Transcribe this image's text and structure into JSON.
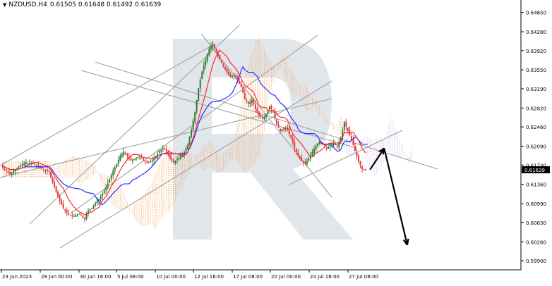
{
  "header": {
    "symbol": "NZDUSD,H4",
    "ohlc": "0.61505 0.61648 0.61492 0.61639"
  },
  "chart_data": {
    "type": "candlestick",
    "symbol": "NZDUSD",
    "timeframe": "H4",
    "ylim": [
      0.599,
      0.6478
    ],
    "y_ticks": [
      "0.64650",
      "0.64280",
      "0.63920",
      "0.63550",
      "0.63190",
      "0.62820",
      "0.62460",
      "0.62090",
      "0.61730",
      "0.61360",
      "0.60990",
      "0.60630",
      "0.60260",
      "0.59900"
    ],
    "x_ticks": [
      "23 Jun 2023",
      "28 Jun 00:00",
      "30 Jun 16:00",
      "5 Jul 08:00",
      "10 Jul 00:00",
      "12 Jul 16:00",
      "17 Jul 08:00",
      "20 Jul 00:00",
      "24 Jul 16:00",
      "27 Jul 08:00"
    ],
    "current_price": "0.61639",
    "grid": false,
    "colors": {
      "bull_candle": "#2e7d32",
      "bear_candle": "#e53935",
      "tenkan": "#ff1a1a",
      "kijun": "#1a1aff",
      "cloud": "#f4a460",
      "cloud_bearish": "#d6b8f0",
      "trendlines": "#a0a0a0",
      "forecast_arrow": "#000000",
      "price_label_bg": "#000000",
      "watermark": "#a9b7c7"
    },
    "close_path": [
      [
        0,
        0.6168
      ],
      [
        4,
        0.6155
      ],
      [
        6,
        0.6162
      ],
      [
        9,
        0.617
      ],
      [
        13,
        0.6178
      ],
      [
        17,
        0.6175
      ],
      [
        20,
        0.617
      ],
      [
        23,
        0.6164
      ],
      [
        26,
        0.616
      ],
      [
        28,
        0.614
      ],
      [
        31,
        0.6112
      ],
      [
        34,
        0.609
      ],
      [
        37,
        0.6078
      ],
      [
        40,
        0.6075
      ],
      [
        43,
        0.608
      ],
      [
        46,
        0.607
      ],
      [
        48,
        0.6085
      ],
      [
        50,
        0.609
      ],
      [
        52,
        0.61
      ],
      [
        54,
        0.6108
      ],
      [
        56,
        0.6118
      ],
      [
        58,
        0.613
      ],
      [
        60,
        0.6145
      ],
      [
        62,
        0.6162
      ],
      [
        64,
        0.6175
      ],
      [
        66,
        0.619
      ],
      [
        68,
        0.6198
      ],
      [
        70,
        0.619
      ],
      [
        72,
        0.6182
      ],
      [
        74,
        0.6184
      ],
      [
        76,
        0.6188
      ],
      [
        78,
        0.6186
      ],
      [
        80,
        0.618
      ],
      [
        82,
        0.6178
      ],
      [
        84,
        0.6182
      ],
      [
        86,
        0.619
      ],
      [
        88,
        0.62
      ],
      [
        90,
        0.6205
      ],
      [
        92,
        0.62
      ],
      [
        94,
        0.6185
      ],
      [
        96,
        0.6178
      ],
      [
        98,
        0.6184
      ],
      [
        100,
        0.619
      ],
      [
        102,
        0.6198
      ],
      [
        104,
        0.6212
      ],
      [
        106,
        0.624
      ],
      [
        108,
        0.6275
      ],
      [
        110,
        0.632
      ],
      [
        112,
        0.6352
      ],
      [
        114,
        0.6375
      ],
      [
        116,
        0.6395
      ],
      [
        118,
        0.6405
      ],
      [
        120,
        0.6388
      ],
      [
        122,
        0.6375
      ],
      [
        124,
        0.6362
      ],
      [
        126,
        0.635
      ],
      [
        128,
        0.6342
      ],
      [
        130,
        0.6345
      ],
      [
        132,
        0.6335
      ],
      [
        134,
        0.6322
      ],
      [
        136,
        0.63
      ],
      [
        138,
        0.629
      ],
      [
        140,
        0.6298
      ],
      [
        142,
        0.628
      ],
      [
        144,
        0.6268
      ],
      [
        146,
        0.6262
      ],
      [
        148,
        0.627
      ],
      [
        150,
        0.6285
      ],
      [
        152,
        0.6275
      ],
      [
        154,
        0.625
      ],
      [
        156,
        0.6238
      ],
      [
        158,
        0.6245
      ],
      [
        160,
        0.624
      ],
      [
        162,
        0.6225
      ],
      [
        164,
        0.6205
      ],
      [
        166,
        0.619
      ],
      [
        168,
        0.618
      ],
      [
        170,
        0.6175
      ],
      [
        172,
        0.6185
      ],
      [
        174,
        0.6198
      ],
      [
        176,
        0.621
      ],
      [
        178,
        0.6218
      ],
      [
        180,
        0.6212
      ],
      [
        182,
        0.6205
      ],
      [
        184,
        0.621
      ],
      [
        186,
        0.6215
      ],
      [
        188,
        0.6208
      ],
      [
        190,
        0.6225
      ],
      [
        192,
        0.6255
      ],
      [
        194,
        0.6238
      ],
      [
        196,
        0.6222
      ],
      [
        198,
        0.62
      ],
      [
        200,
        0.618
      ],
      [
        202,
        0.6165
      ],
      [
        204,
        0.6164
      ]
    ],
    "forecast": {
      "points": [
        [
          204,
          0.6164
        ],
        [
          212,
          0.6205
        ],
        [
          225,
          0.602
        ]
      ]
    }
  },
  "labels": {
    "watermark_letter": "R"
  }
}
